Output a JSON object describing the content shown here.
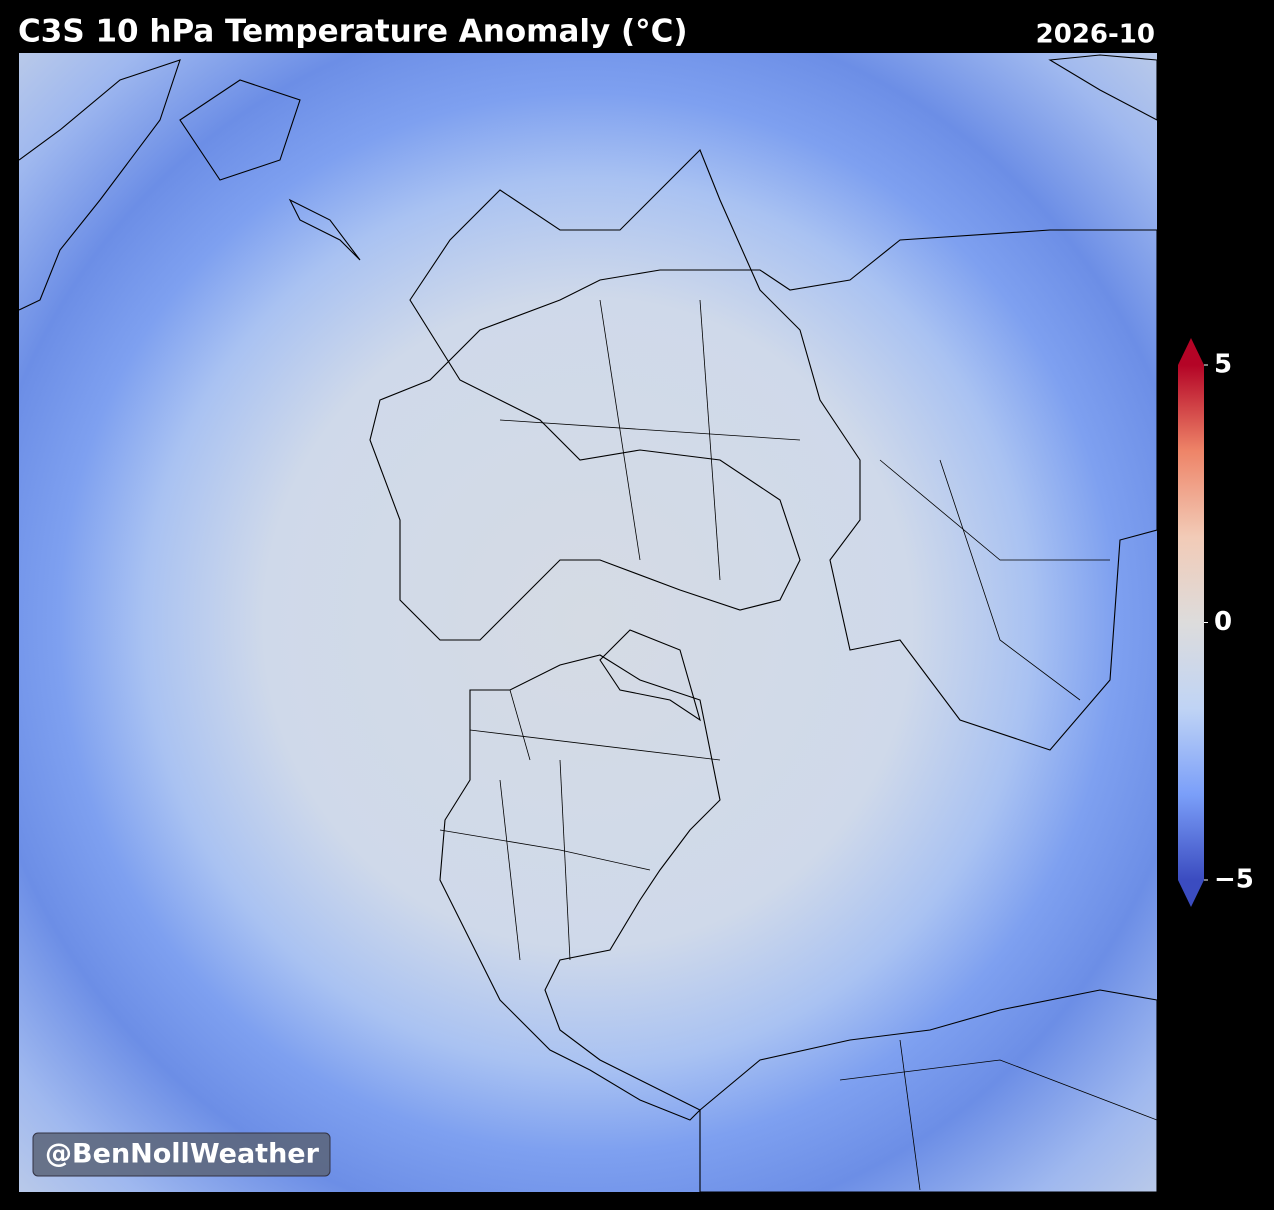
{
  "title": "C3S 10 hPa Temperature Anomaly (°C)",
  "date": "2026-10",
  "colorbar": {
    "lim": [
      -5,
      5
    ],
    "ticks": [
      5,
      0,
      {
        "value": -5,
        "label": "−5"
      }
    ],
    "colormap": [
      "#3b4cc0",
      "#7b9ff9",
      "#c0d4f5",
      "#dddcdc",
      "#f2cbb7",
      "#ee8468",
      "#b40426"
    ]
  },
  "credit": "@BenNollWeather"
}
